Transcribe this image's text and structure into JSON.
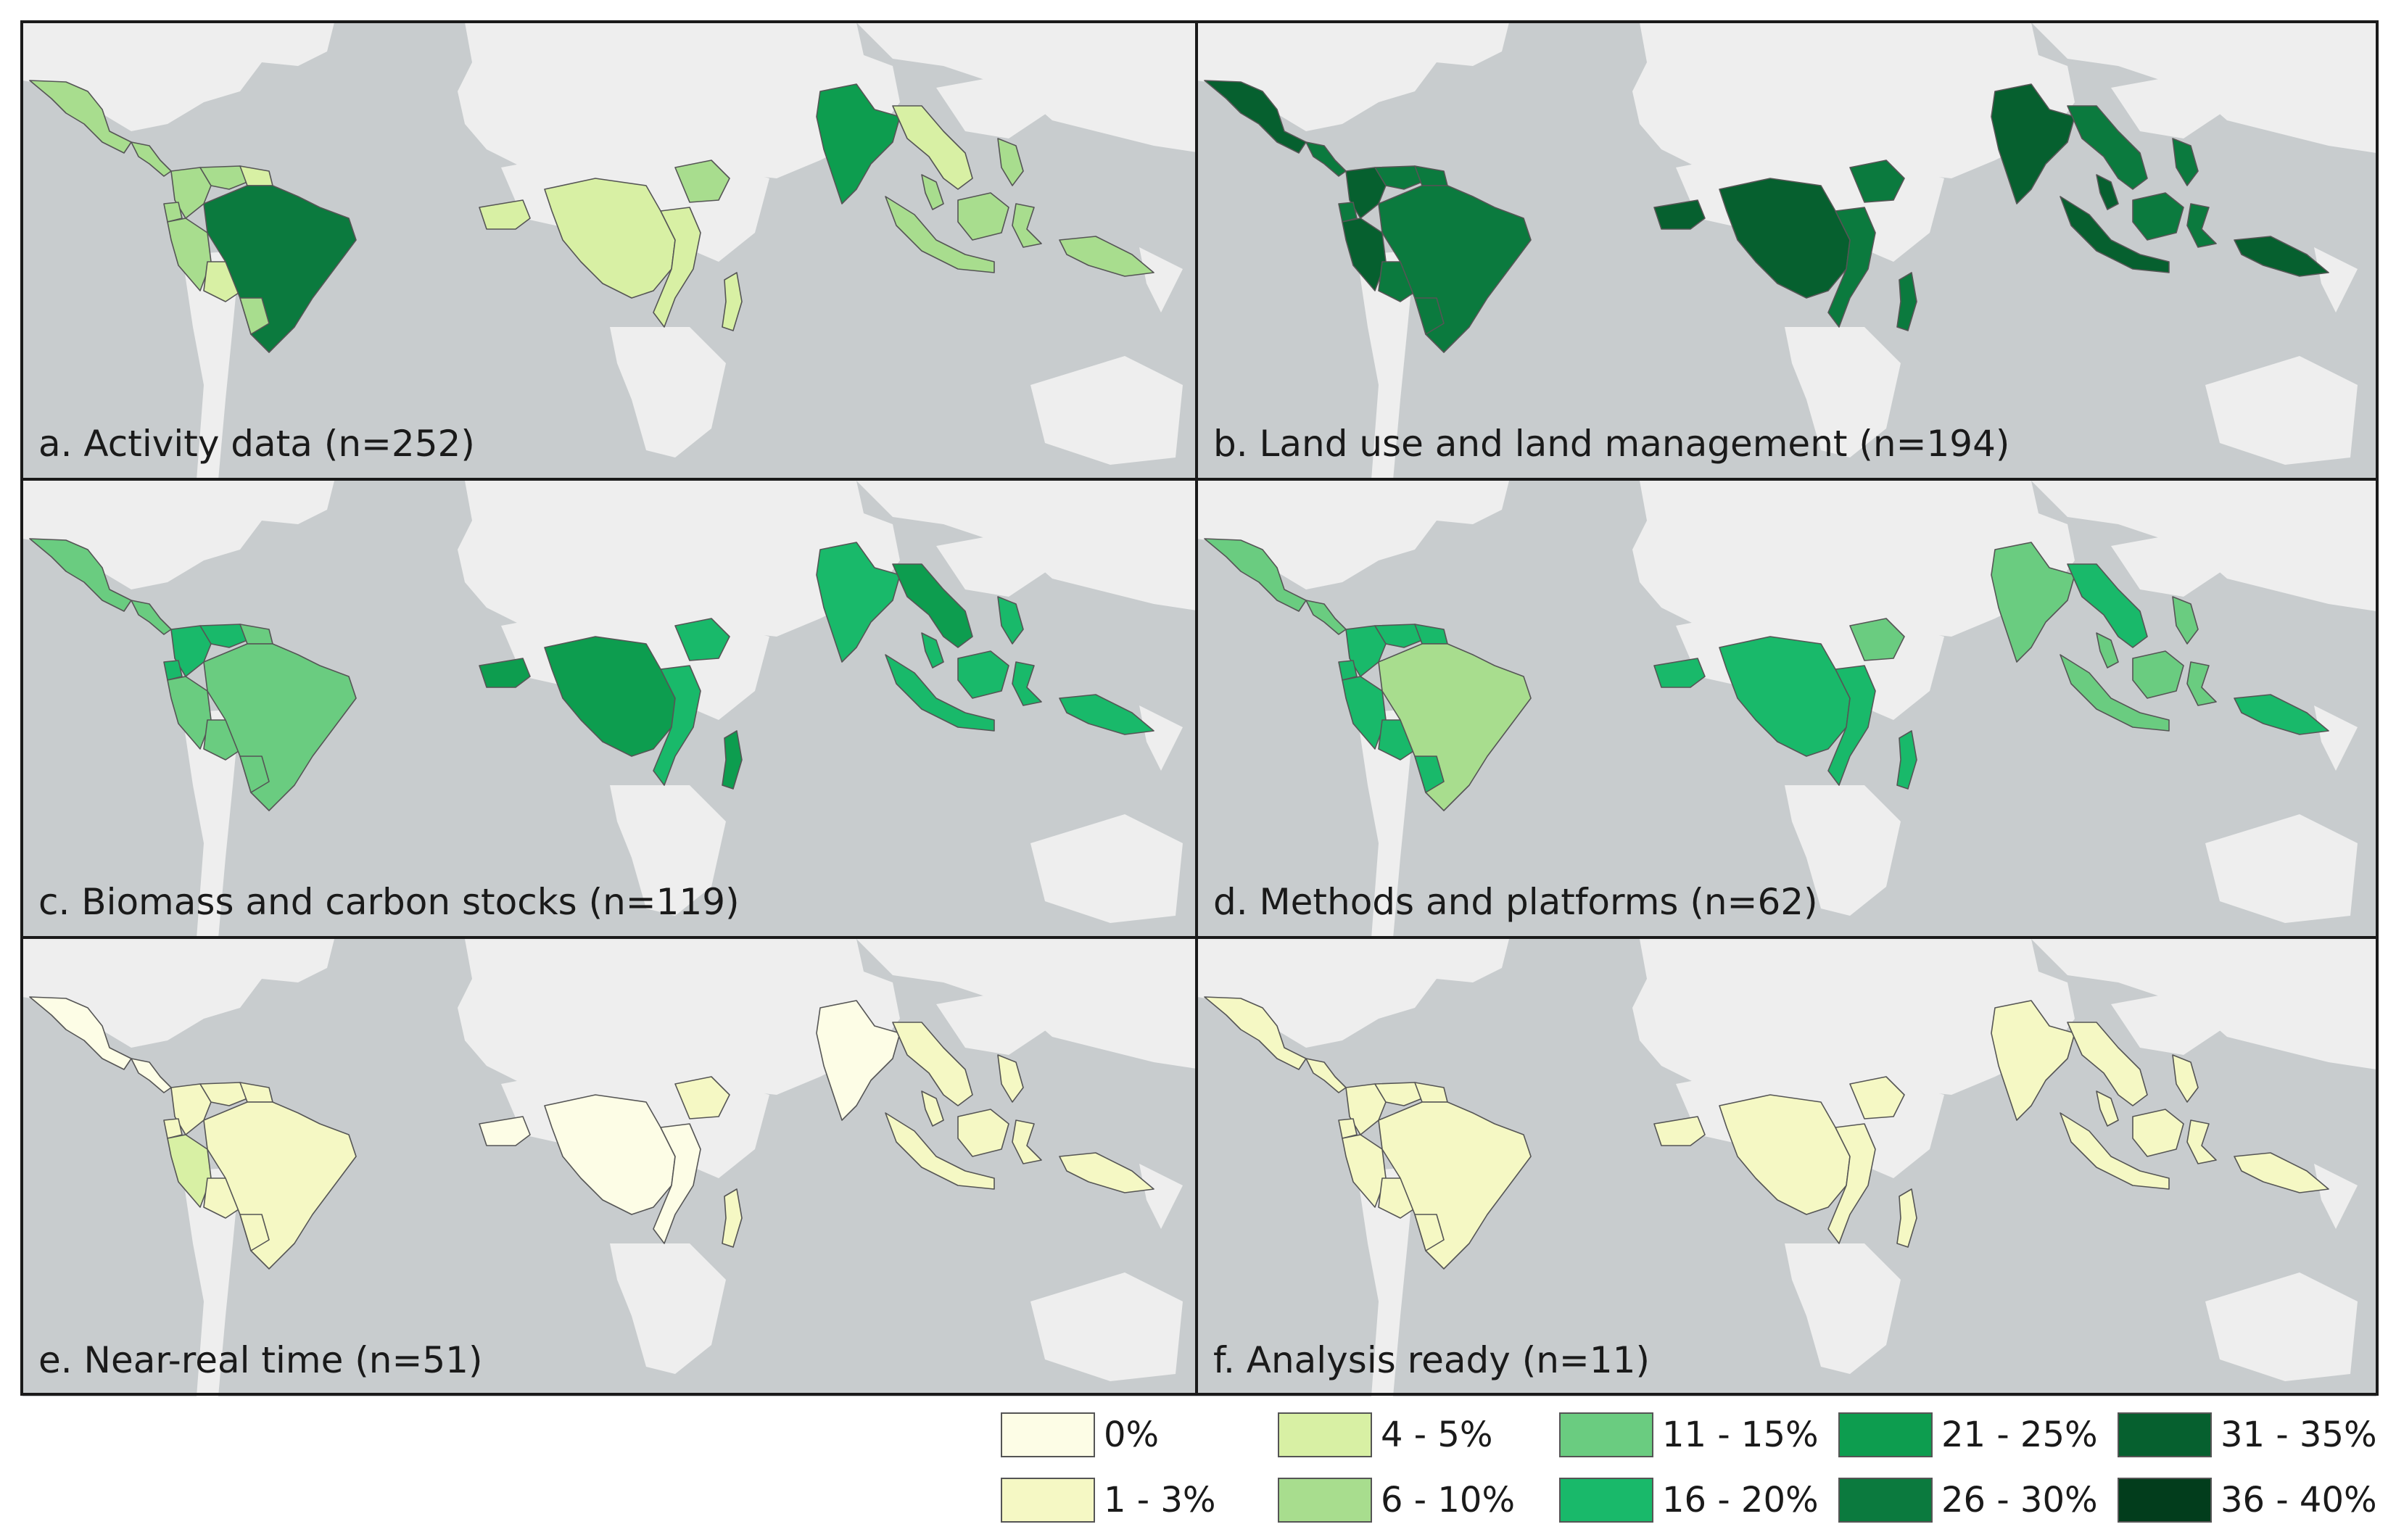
{
  "figure": {
    "panels": [
      {
        "id": "a",
        "label": "a. Activity data (n=252)",
        "shades": {
          "mexico": 3,
          "central_america": 3,
          "colombia": 3,
          "venezuela": 3,
          "guianas": 2,
          "ecuador": 3,
          "peru": 3,
          "bolivia": 2,
          "brazil": 7,
          "paraguay": 3,
          "west_africa": 2,
          "central_africa": 2,
          "east_africa": 2,
          "ethiopia": 3,
          "madagascar": 2,
          "india": 6,
          "mainland_se_asia": 2,
          "malaysia": 3,
          "borneo": 3,
          "sumatra_java": 3,
          "sulawesi": 3,
          "philippines": 3,
          "new_guinea": 3
        }
      },
      {
        "id": "b",
        "label": "b. Land use and land management (n=194)",
        "shades": {
          "mexico": 8,
          "central_america": 7,
          "colombia": 8,
          "venezuela": 7,
          "guianas": 7,
          "ecuador": 7,
          "peru": 8,
          "bolivia": 7,
          "brazil": 7,
          "paraguay": 7,
          "west_africa": 8,
          "central_africa": 8,
          "east_africa": 7,
          "ethiopia": 7,
          "madagascar": 7,
          "india": 8,
          "mainland_se_asia": 7,
          "malaysia": 8,
          "borneo": 7,
          "sumatra_java": 8,
          "sulawesi": 7,
          "philippines": 7,
          "new_guinea": 8
        }
      },
      {
        "id": "c",
        "label": "c. Biomass and carbon stocks (n=119)",
        "shades": {
          "mexico": 4,
          "central_america": 4,
          "colombia": 5,
          "venezuela": 5,
          "guianas": 4,
          "ecuador": 5,
          "peru": 4,
          "bolivia": 4,
          "brazil": 4,
          "paraguay": 4,
          "west_africa": 6,
          "central_africa": 6,
          "east_africa": 5,
          "ethiopia": 5,
          "madagascar": 6,
          "india": 5,
          "mainland_se_asia": 6,
          "malaysia": 5,
          "borneo": 5,
          "sumatra_java": 5,
          "sulawesi": 5,
          "philippines": 5,
          "new_guinea": 5
        }
      },
      {
        "id": "d",
        "label": "d. Methods and platforms (n=62)",
        "shades": {
          "mexico": 4,
          "central_america": 4,
          "colombia": 5,
          "venezuela": 5,
          "guianas": 5,
          "ecuador": 5,
          "peru": 5,
          "bolivia": 5,
          "brazil": 3,
          "paraguay": 5,
          "west_africa": 5,
          "central_africa": 5,
          "east_africa": 5,
          "ethiopia": 4,
          "madagascar": 5,
          "india": 4,
          "mainland_se_asia": 5,
          "malaysia": 4,
          "borneo": 4,
          "sumatra_java": 4,
          "sulawesi": 4,
          "philippines": 4,
          "new_guinea": 5
        }
      },
      {
        "id": "e",
        "label": "e. Near-real time (n=51)",
        "shades": {
          "mexico": 0,
          "central_america": 0,
          "colombia": 1,
          "venezuela": 1,
          "guianas": 1,
          "ecuador": 1,
          "peru": 2,
          "bolivia": 1,
          "brazil": 1,
          "paraguay": 1,
          "west_africa": 0,
          "central_africa": 0,
          "east_africa": 0,
          "ethiopia": 1,
          "madagascar": 1,
          "india": 0,
          "mainland_se_asia": 1,
          "malaysia": 1,
          "borneo": 1,
          "sumatra_java": 1,
          "sulawesi": 1,
          "philippines": 1,
          "new_guinea": 1
        }
      },
      {
        "id": "f",
        "label": "f. Analysis ready (n=11)",
        "shades": {
          "mexico": 1,
          "central_america": 1,
          "colombia": 1,
          "venezuela": 1,
          "guianas": 1,
          "ecuador": 1,
          "peru": 1,
          "bolivia": 1,
          "brazil": 1,
          "paraguay": 1,
          "west_africa": 1,
          "central_africa": 1,
          "east_africa": 1,
          "ethiopia": 1,
          "madagascar": 1,
          "india": 1,
          "mainland_se_asia": 1,
          "malaysia": 1,
          "borneo": 1,
          "sumatra_java": 1,
          "sulawesi": 1,
          "philippines": 1,
          "new_guinea": 1
        }
      }
    ],
    "legend": [
      {
        "label": "0%",
        "color": "#fdfde6"
      },
      {
        "label": "1 - 3%",
        "color": "#f5f8c4"
      },
      {
        "label": "4 - 5%",
        "color": "#d8f0a4"
      },
      {
        "label": "6 - 10%",
        "color": "#a8dd8e"
      },
      {
        "label": "11 - 15%",
        "color": "#6acc80"
      },
      {
        "label": "16 - 20%",
        "color": "#19b96a"
      },
      {
        "label": "21 - 25%",
        "color": "#0d9d4f"
      },
      {
        "label": "26 - 30%",
        "color": "#0b7a3e"
      },
      {
        "label": "31 - 35%",
        "color": "#06602f"
      },
      {
        "label": "36 - 40%",
        "color": "#023d1c"
      }
    ],
    "map_colors": {
      "ocean": "#c8ccce",
      "land": "#eeeeee",
      "border": "#555555"
    }
  }
}
